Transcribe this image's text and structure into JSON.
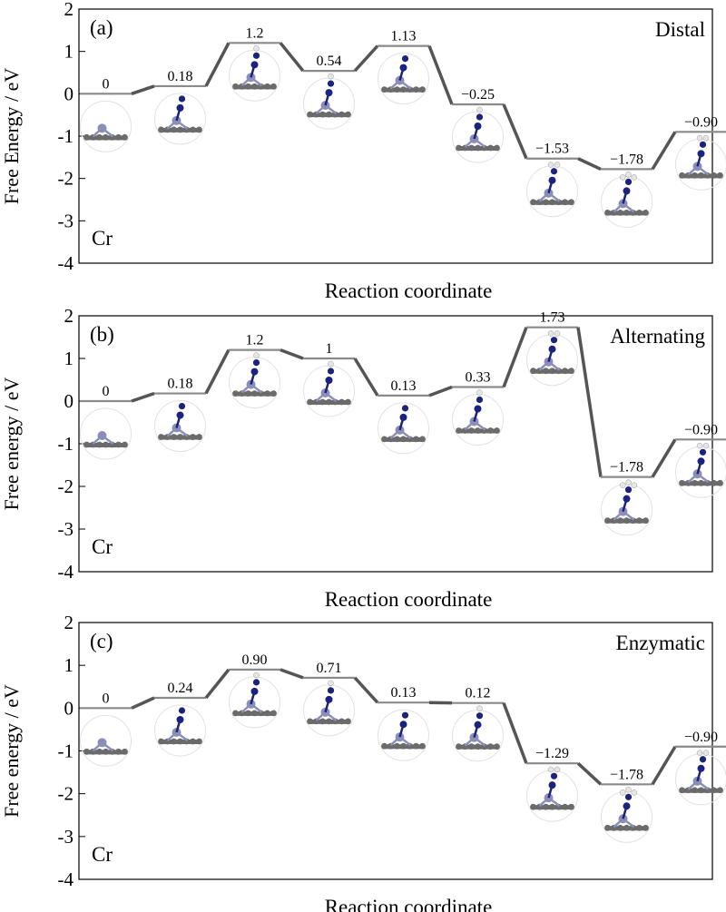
{
  "chart_data": [
    {
      "type": "line",
      "panel_label": "(a)",
      "pathway": "Distal",
      "metal": "Cr",
      "xlabel": "Reaction coordinate",
      "ylabel": "Free Energy / eV",
      "ylim": [
        -4,
        2
      ],
      "yticks": [
        2,
        1,
        0,
        -1,
        -2,
        -3,
        -4
      ],
      "x": [
        1,
        2,
        3,
        4,
        5,
        6,
        7,
        8,
        9
      ],
      "values": [
        0,
        0.18,
        1.2,
        0.54,
        1.13,
        -0.25,
        -1.53,
        -1.78,
        -0.9
      ],
      "labels": [
        "0",
        "0.18",
        "1.2",
        "0.54",
        "1.13",
        "−0.25",
        "−1.53",
        "−1.78",
        "−0.90"
      ]
    },
    {
      "type": "line",
      "panel_label": "(b)",
      "pathway": "Alternating",
      "metal": "Cr",
      "xlabel": "Reaction coordinate",
      "ylabel": "Free energy / eV",
      "ylim": [
        -4,
        2
      ],
      "yticks": [
        2,
        1,
        0,
        -1,
        -2,
        -3,
        -4
      ],
      "x": [
        1,
        2,
        3,
        4,
        5,
        6,
        7,
        8,
        9
      ],
      "values": [
        0,
        0.18,
        1.2,
        1,
        0.13,
        0.33,
        1.73,
        -1.78,
        -0.9
      ],
      "labels": [
        "0",
        "0.18",
        "1.2",
        "1",
        "0.13",
        "0.33",
        "1.73",
        "−1.78",
        "−0.90"
      ]
    },
    {
      "type": "line",
      "panel_label": "(c)",
      "pathway": "Enzymatic",
      "metal": "Cr",
      "xlabel": "Reaction coordinate",
      "ylabel": "Free energy / eV",
      "ylim": [
        -4,
        2
      ],
      "yticks": [
        2,
        1,
        0,
        -1,
        -2,
        -3,
        -4
      ],
      "x": [
        1,
        2,
        3,
        4,
        5,
        6,
        7,
        8,
        9
      ],
      "values": [
        0,
        0.24,
        0.9,
        0.71,
        0.13,
        0.12,
        -1.29,
        -1.78,
        -0.9
      ],
      "labels": [
        "0",
        "0.24",
        "0.90",
        "0.71",
        "0.13",
        "0.12",
        "−1.29",
        "−1.78",
        "−0.90"
      ]
    }
  ],
  "colors": {
    "level_line": "#8a8a8a",
    "connector": "#555555",
    "axis": "#000000",
    "substrate_atom": "#6b6b6b",
    "metal_atom": "#8b8fb8",
    "nitrogen_atom": "#1a237e",
    "hydrogen_atom": "#e6e6e6"
  },
  "icons": [
    "adsorption-structure-icon"
  ]
}
